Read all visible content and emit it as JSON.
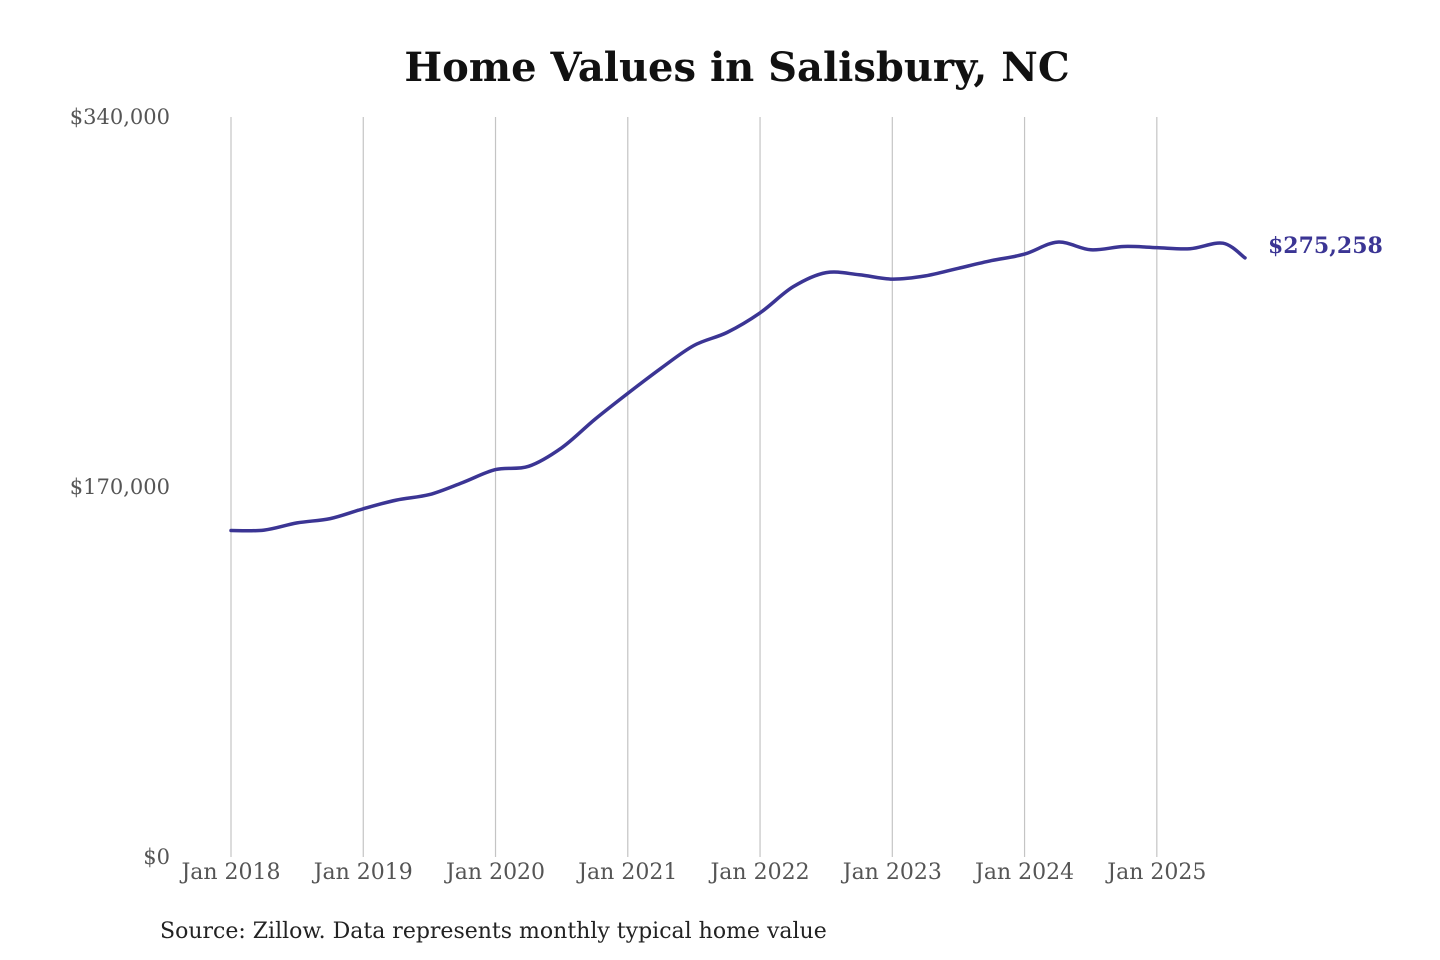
{
  "chart_data": {
    "type": "line",
    "title": "Home Values in Salisbury, NC",
    "xlabel": "",
    "ylabel": "",
    "ylim": [
      0,
      340000
    ],
    "xlim": [
      "2018-01",
      "2025-09"
    ],
    "y_ticks": [
      {
        "value": 0,
        "label": "$0"
      },
      {
        "value": 170000,
        "label": "$170,000"
      },
      {
        "value": 340000,
        "label": "$340,000"
      }
    ],
    "x_ticks": [
      {
        "value": "2018-01",
        "label": "Jan 2018"
      },
      {
        "value": "2019-01",
        "label": "Jan 2019"
      },
      {
        "value": "2020-01",
        "label": "Jan 2020"
      },
      {
        "value": "2021-01",
        "label": "Jan 2021"
      },
      {
        "value": "2022-01",
        "label": "Jan 2022"
      },
      {
        "value": "2023-01",
        "label": "Jan 2023"
      },
      {
        "value": "2024-01",
        "label": "Jan 2024"
      },
      {
        "value": "2025-01",
        "label": "Jan 2025"
      }
    ],
    "grid": "vertical",
    "line_color": "#3b3594",
    "end_label": "$275,258",
    "series": [
      {
        "x": [
          "2018-01",
          "2018-04",
          "2018-07",
          "2018-10",
          "2019-01",
          "2019-04",
          "2019-07",
          "2019-10",
          "2020-01",
          "2020-04",
          "2020-07",
          "2020-10",
          "2021-01",
          "2021-04",
          "2021-07",
          "2021-10",
          "2022-01",
          "2022-04",
          "2022-07",
          "2022-10",
          "2023-01",
          "2023-04",
          "2023-07",
          "2023-10",
          "2024-01",
          "2024-04",
          "2024-07",
          "2024-10",
          "2025-01",
          "2025-04",
          "2025-07",
          "2025-09"
        ],
        "values": [
          150000,
          150200,
          153500,
          155500,
          160000,
          164000,
          166500,
          172000,
          178000,
          179500,
          188000,
          201000,
          213000,
          224500,
          235000,
          241000,
          250000,
          262000,
          268500,
          267500,
          265500,
          267000,
          270500,
          274000,
          277000,
          282500,
          279000,
          280500,
          280000,
          279500,
          282000,
          275258
        ]
      }
    ]
  },
  "source_note": "Source: Zillow. Data represents monthly typical home value"
}
